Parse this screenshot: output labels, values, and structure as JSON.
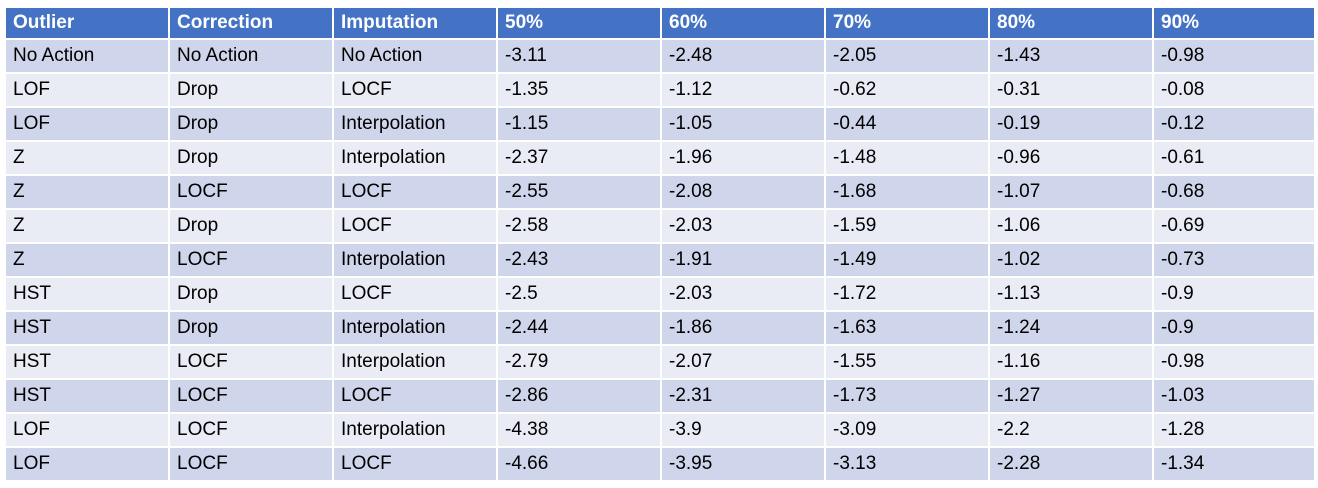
{
  "chart_data": {
    "type": "table",
    "columns": [
      "Outlier",
      "Correction",
      "Imputation",
      "50%",
      "60%",
      "70%",
      "80%",
      "90%"
    ],
    "rows": [
      [
        "No Action",
        "No Action",
        "No Action",
        "-3.11",
        "-2.48",
        "-2.05",
        "-1.43",
        "-0.98"
      ],
      [
        "LOF",
        "Drop",
        "LOCF",
        "-1.35",
        "-1.12",
        "-0.62",
        "-0.31",
        "-0.08"
      ],
      [
        "LOF",
        "Drop",
        "Interpolation",
        "-1.15",
        "-1.05",
        "-0.44",
        "-0.19",
        "-0.12"
      ],
      [
        "Z",
        "Drop",
        "Interpolation",
        "-2.37",
        "-1.96",
        "-1.48",
        "-0.96",
        "-0.61"
      ],
      [
        "Z",
        "LOCF",
        "LOCF",
        "-2.55",
        "-2.08",
        "-1.68",
        "-1.07",
        "-0.68"
      ],
      [
        "Z",
        "Drop",
        "LOCF",
        "-2.58",
        "-2.03",
        "-1.59",
        "-1.06",
        "-0.69"
      ],
      [
        "Z",
        "LOCF",
        "Interpolation",
        "-2.43",
        "-1.91",
        "-1.49",
        "-1.02",
        "-0.73"
      ],
      [
        "HST",
        "Drop",
        "LOCF",
        "-2.5",
        "-2.03",
        "-1.72",
        "-1.13",
        "-0.9"
      ],
      [
        "HST",
        "Drop",
        "Interpolation",
        "-2.44",
        "-1.86",
        "-1.63",
        "-1.24",
        "-0.9"
      ],
      [
        "HST",
        "LOCF",
        "Interpolation",
        "-2.79",
        "-2.07",
        "-1.55",
        "-1.16",
        "-0.98"
      ],
      [
        "HST",
        "LOCF",
        "LOCF",
        "-2.86",
        "-2.31",
        "-1.73",
        "-1.27",
        "-1.03"
      ],
      [
        "LOF",
        "LOCF",
        "Interpolation",
        "-4.38",
        "-3.9",
        "-3.09",
        "-2.2",
        "-1.28"
      ],
      [
        "LOF",
        "LOCF",
        "LOCF",
        "-4.66",
        "-3.95",
        "-3.13",
        "-2.28",
        "-1.34"
      ]
    ]
  },
  "colors": {
    "header_bg": "#4472c4",
    "header_text": "#ffffff",
    "row_odd_bg": "#cfd5ea",
    "row_even_bg": "#e9ebf5",
    "grid_line": "#ffffff"
  }
}
